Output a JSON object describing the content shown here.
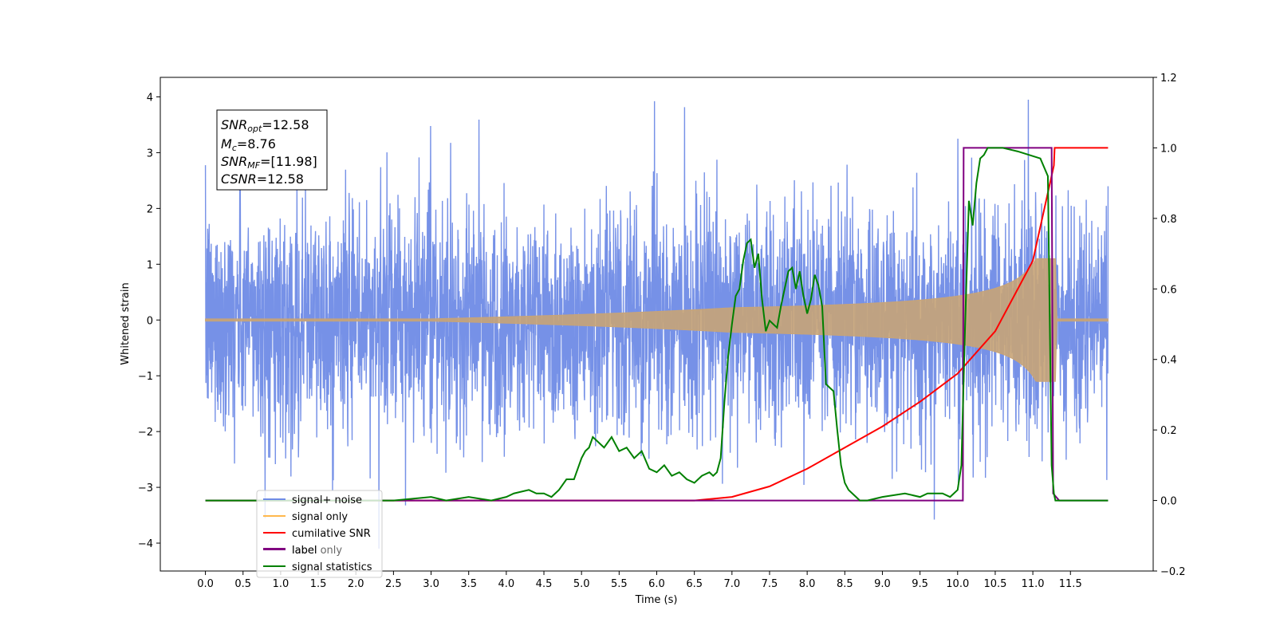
{
  "chart_data": {
    "type": "line",
    "xlabel": "Time (s)",
    "ylabel": "Whitened strain",
    "xlim": [
      -0.6,
      12.6
    ],
    "ylim": [
      -4.5,
      4.35
    ],
    "y2lim": [
      -0.2,
      1.2
    ],
    "x_ticks": [
      "0.0",
      "0.5",
      "1.0",
      "1.5",
      "2.0",
      "2.5",
      "3.0",
      "3.5",
      "4.0",
      "4.5",
      "5.0",
      "5.5",
      "6.0",
      "6.5",
      "7.0",
      "7.5",
      "8.0",
      "8.5",
      "9.0",
      "9.5",
      "10.0",
      "10.5",
      "11.0",
      "11.5"
    ],
    "y_ticks": [
      "4",
      "3",
      "2",
      "1",
      "0",
      "−1",
      "−2",
      "−3",
      "−4"
    ],
    "y2_ticks": [
      "1.2",
      "1.0",
      "0.8",
      "0.6",
      "0.4",
      "0.2",
      "0.0",
      "−0.2"
    ],
    "stats_box": {
      "snr_opt": {
        "sym": "SNR",
        "sub": "opt",
        "val": "=12.58"
      },
      "mc": {
        "sym": "M",
        "sub": "c",
        "val": "=8.76"
      },
      "snr_mf": {
        "sym": "SNR",
        "sub": "MF",
        "val": "=[11.98]"
      },
      "csnr": {
        "sym": "CSNR",
        "val": "=12.58"
      }
    },
    "legend": {
      "placement": "lower-left",
      "entries": [
        {
          "label": "signal+ noise",
          "color": "#6f8be6"
        },
        {
          "label": "signal only",
          "color": "#ffb84d"
        },
        {
          "label": "cumilative SNR",
          "color": "#ff0000"
        },
        {
          "label": "label",
          "color": "#800080"
        },
        {
          "label": "label only",
          "color": "#800080"
        },
        {
          "label": "signal statistics",
          "color": "#008000"
        }
      ]
    },
    "series": [
      {
        "name": "signal+ noise",
        "axis": "left",
        "color": "#6f8be6",
        "duration": 12.0,
        "noise_sigma": 1.0,
        "approx_extremes": [
          -4.1,
          3.95
        ]
      },
      {
        "name": "signal only",
        "axis": "left",
        "color": "#c8a477",
        "chirp_start": 7.0,
        "merger_time": 11.3,
        "peak_amplitude": 1.1
      },
      {
        "name": "cumilative SNR",
        "axis": "right",
        "color": "#ff0000",
        "x": [
          0.0,
          6.5,
          7.0,
          7.5,
          8.0,
          8.5,
          9.0,
          9.5,
          10.0,
          10.5,
          11.0,
          11.28,
          11.29,
          12.0
        ],
        "y": [
          0.0,
          0.0,
          0.01,
          0.04,
          0.09,
          0.15,
          0.21,
          0.28,
          0.36,
          0.48,
          0.68,
          0.95,
          1.0,
          1.0
        ]
      },
      {
        "name": "label",
        "axis": "right",
        "color": "#800080",
        "x": [
          0.0,
          10.07,
          10.08,
          11.25,
          11.27,
          11.35,
          12.0
        ],
        "y": [
          0.0,
          0.0,
          1.0,
          1.0,
          0.02,
          0.0,
          0.0
        ]
      },
      {
        "name": "signal statistics",
        "axis": "right",
        "color": "#008000",
        "x": [
          0.0,
          2.5,
          3.0,
          3.2,
          3.5,
          3.8,
          4.0,
          4.1,
          4.3,
          4.4,
          4.5,
          4.6,
          4.7,
          4.8,
          4.9,
          5.0,
          5.05,
          5.1,
          5.15,
          5.2,
          5.3,
          5.4,
          5.5,
          5.6,
          5.7,
          5.8,
          5.9,
          6.0,
          6.1,
          6.2,
          6.3,
          6.4,
          6.5,
          6.6,
          6.7,
          6.75,
          6.8,
          6.85,
          6.9,
          6.95,
          7.0,
          7.05,
          7.1,
          7.15,
          7.2,
          7.25,
          7.3,
          7.35,
          7.4,
          7.45,
          7.5,
          7.55,
          7.6,
          7.65,
          7.7,
          7.75,
          7.8,
          7.85,
          7.9,
          7.95,
          8.0,
          8.05,
          8.1,
          8.15,
          8.2,
          8.25,
          8.3,
          8.35,
          8.4,
          8.45,
          8.5,
          8.55,
          8.6,
          8.65,
          8.7,
          8.8,
          9.0,
          9.3,
          9.5,
          9.6,
          9.8,
          9.9,
          10.0,
          10.05,
          10.1,
          10.15,
          10.2,
          10.25,
          10.3,
          10.35,
          10.4,
          10.5,
          10.6,
          10.8,
          11.1,
          11.2,
          11.25,
          11.28,
          11.3,
          11.35,
          12.0
        ],
        "y": [
          0.0,
          0.0,
          0.01,
          0.0,
          0.01,
          0.0,
          0.01,
          0.02,
          0.03,
          0.02,
          0.02,
          0.01,
          0.03,
          0.06,
          0.06,
          0.12,
          0.14,
          0.15,
          0.18,
          0.17,
          0.15,
          0.18,
          0.14,
          0.15,
          0.12,
          0.14,
          0.09,
          0.08,
          0.1,
          0.07,
          0.08,
          0.06,
          0.05,
          0.07,
          0.08,
          0.07,
          0.08,
          0.12,
          0.28,
          0.41,
          0.5,
          0.58,
          0.6,
          0.68,
          0.73,
          0.74,
          0.66,
          0.7,
          0.57,
          0.48,
          0.51,
          0.5,
          0.49,
          0.55,
          0.6,
          0.65,
          0.66,
          0.6,
          0.65,
          0.58,
          0.53,
          0.57,
          0.64,
          0.61,
          0.55,
          0.33,
          0.32,
          0.31,
          0.2,
          0.1,
          0.05,
          0.03,
          0.02,
          0.01,
          0.0,
          0.0,
          0.01,
          0.02,
          0.01,
          0.02,
          0.02,
          0.01,
          0.03,
          0.1,
          0.5,
          0.85,
          0.78,
          0.9,
          0.97,
          0.98,
          1.0,
          1.0,
          1.0,
          0.99,
          0.97,
          0.92,
          0.1,
          0.02,
          0.0,
          0.0,
          0.0
        ]
      }
    ]
  }
}
